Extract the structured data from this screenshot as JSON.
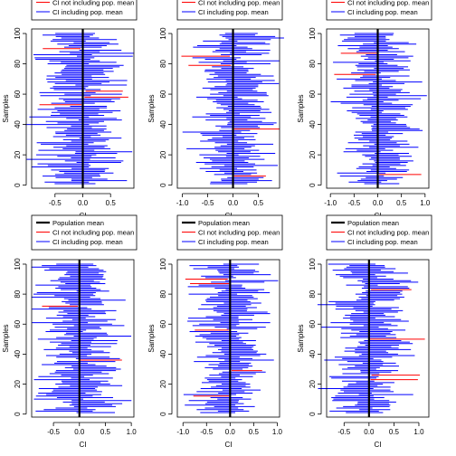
{
  "legend_labels": [
    "Population mean",
    "CI not including pop. mean",
    "CI including pop. mean"
  ],
  "colors": {
    "mean": "#000000",
    "miss": "#ff0000",
    "hit": "#0000ff"
  },
  "chart_data": [
    {
      "type": "interval",
      "xlabel": "CI",
      "ylabel": "Samples",
      "xlim": [
        -0.92,
        0.92
      ],
      "ylim": [
        -2,
        103
      ],
      "xticks": [
        -0.5,
        0.0,
        0.5
      ],
      "yticks": [
        0,
        20,
        40,
        60,
        80,
        100
      ],
      "mean": 0,
      "n": 100,
      "seed": 11,
      "misses": [
        {
          "i": 52,
          "lo": -0.78,
          "hi": -0.02
        },
        {
          "i": 57,
          "lo": 0.03,
          "hi": 0.82
        },
        {
          "i": 61,
          "lo": 0.05,
          "hi": 0.72
        },
        {
          "i": 89,
          "lo": -0.72,
          "hi": -0.04
        }
      ]
    },
    {
      "type": "interval",
      "xlabel": "CI",
      "ylabel": "Samples",
      "xlim": [
        -1.1,
        0.92
      ],
      "ylim": [
        -2,
        103
      ],
      "xticks": [
        -1.0,
        -0.5,
        0.0,
        0.5
      ],
      "yticks": [
        0,
        20,
        40,
        60,
        80,
        100
      ],
      "mean": 0,
      "n": 100,
      "seed": 23,
      "misses": [
        {
          "i": 5,
          "lo": 0.02,
          "hi": 0.65
        },
        {
          "i": 36,
          "lo": 0.02,
          "hi": 0.92
        },
        {
          "i": 78,
          "lo": -0.88,
          "hi": -0.04
        },
        {
          "i": 84,
          "lo": -1.02,
          "hi": -0.06
        }
      ]
    },
    {
      "type": "interval",
      "xlabel": "CI",
      "ylabel": "Samples",
      "xlim": [
        -1.08,
        1.08
      ],
      "ylim": [
        -2,
        103
      ],
      "xticks": [
        -1.0,
        -0.5,
        0.0,
        0.5,
        1.0
      ],
      "yticks": [
        0,
        20,
        40,
        60,
        80,
        100
      ],
      "mean": 0,
      "n": 100,
      "seed": 37,
      "misses": [
        {
          "i": 6,
          "lo": 0.03,
          "hi": 0.92
        },
        {
          "i": 72,
          "lo": -0.92,
          "hi": -0.04
        },
        {
          "i": 86,
          "lo": -0.78,
          "hi": -0.02
        }
      ]
    },
    {
      "type": "interval",
      "xlabel": "CI",
      "ylabel": "Samples",
      "xlim": [
        -0.92,
        1.05
      ],
      "ylim": [
        -2,
        103
      ],
      "xticks": [
        -0.5,
        0.0,
        0.5,
        1.0
      ],
      "yticks": [
        0,
        20,
        40,
        60,
        80,
        100
      ],
      "mean": 0,
      "n": 100,
      "seed": 41,
      "misses": [
        {
          "i": 35,
          "lo": 0.02,
          "hi": 0.82
        },
        {
          "i": 71,
          "lo": -0.72,
          "hi": -0.03
        }
      ]
    },
    {
      "type": "interval",
      "xlabel": "CI",
      "ylabel": "Samples",
      "xlim": [
        -1.12,
        1.05
      ],
      "ylim": [
        -2,
        103
      ],
      "xticks": [
        -1.0,
        -0.5,
        0.0,
        0.5,
        1.0
      ],
      "yticks": [
        0,
        20,
        40,
        60,
        80,
        100
      ],
      "mean": 0,
      "n": 100,
      "seed": 53,
      "misses": [
        {
          "i": 11,
          "lo": -0.78,
          "hi": -0.02
        },
        {
          "i": 28,
          "lo": 0.03,
          "hi": 0.68
        },
        {
          "i": 55,
          "lo": -0.75,
          "hi": -0.03
        },
        {
          "i": 86,
          "lo": -0.85,
          "hi": -0.02
        },
        {
          "i": 89,
          "lo": -0.95,
          "hi": -0.05
        }
      ]
    },
    {
      "type": "interval",
      "xlabel": "CI",
      "ylabel": "Samples",
      "xlim": [
        -0.85,
        1.2
      ],
      "ylim": [
        -2,
        103
      ],
      "xticks": [
        -0.5,
        0.0,
        0.5,
        1.0
      ],
      "yticks": [
        0,
        20,
        40,
        60,
        80,
        100
      ],
      "mean": 0,
      "n": 100,
      "seed": 67,
      "misses": [
        {
          "i": 22,
          "lo": 0.03,
          "hi": 0.98
        },
        {
          "i": 25,
          "lo": 0.05,
          "hi": 1.02
        },
        {
          "i": 49,
          "lo": 0.02,
          "hi": 1.12
        },
        {
          "i": 82,
          "lo": 0.04,
          "hi": 0.85
        }
      ]
    }
  ]
}
